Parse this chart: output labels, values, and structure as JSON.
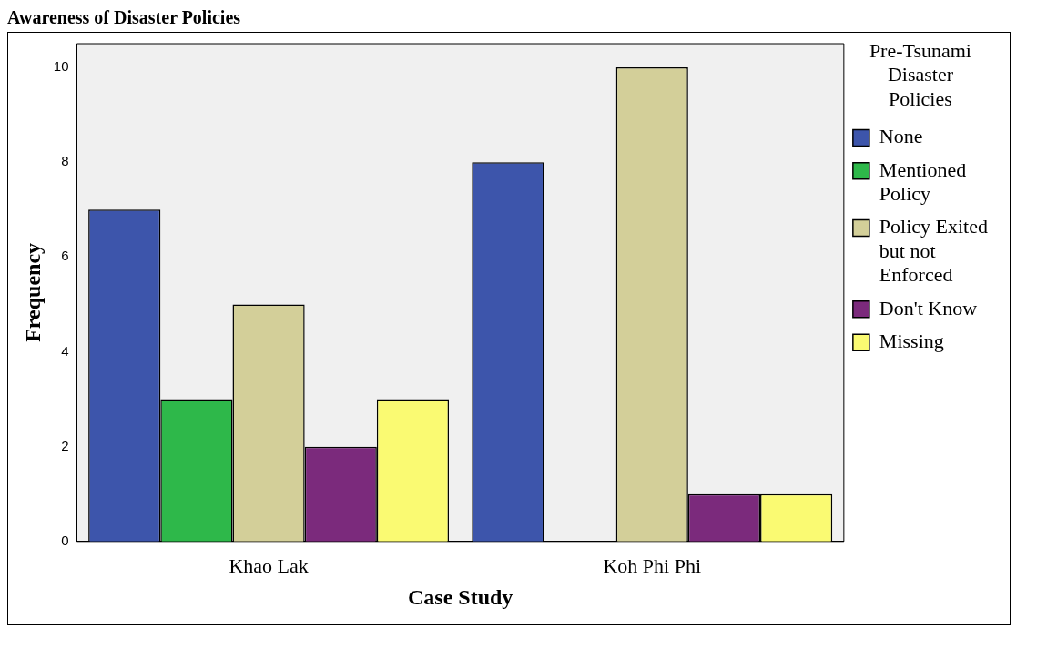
{
  "chart_data": {
    "type": "bar",
    "title": "Awareness of Disaster Policies",
    "xlabel": "Case Study",
    "ylabel": "Frequency",
    "legend_title": "Pre-Tsunami Disaster Policies",
    "categories": [
      "Khao Lak",
      "Koh Phi Phi"
    ],
    "series": [
      {
        "name": "None",
        "color": "#3d55ab",
        "values": [
          7,
          8
        ]
      },
      {
        "name": "Mentioned Policy",
        "color": "#2eb84a",
        "values": [
          3,
          0
        ]
      },
      {
        "name": "Policy Exited but not Enforced",
        "color": "#d3cf99",
        "values": [
          5,
          10
        ]
      },
      {
        "name": "Don't Know",
        "color": "#7b2a7c",
        "values": [
          2,
          1
        ]
      },
      {
        "name": "Missing",
        "color": "#fafa72",
        "values": [
          3,
          1
        ]
      }
    ],
    "ylim": [
      0,
      10.5
    ],
    "yticks": [
      0,
      2,
      4,
      6,
      8,
      10
    ],
    "grid": false,
    "legend": "right"
  }
}
